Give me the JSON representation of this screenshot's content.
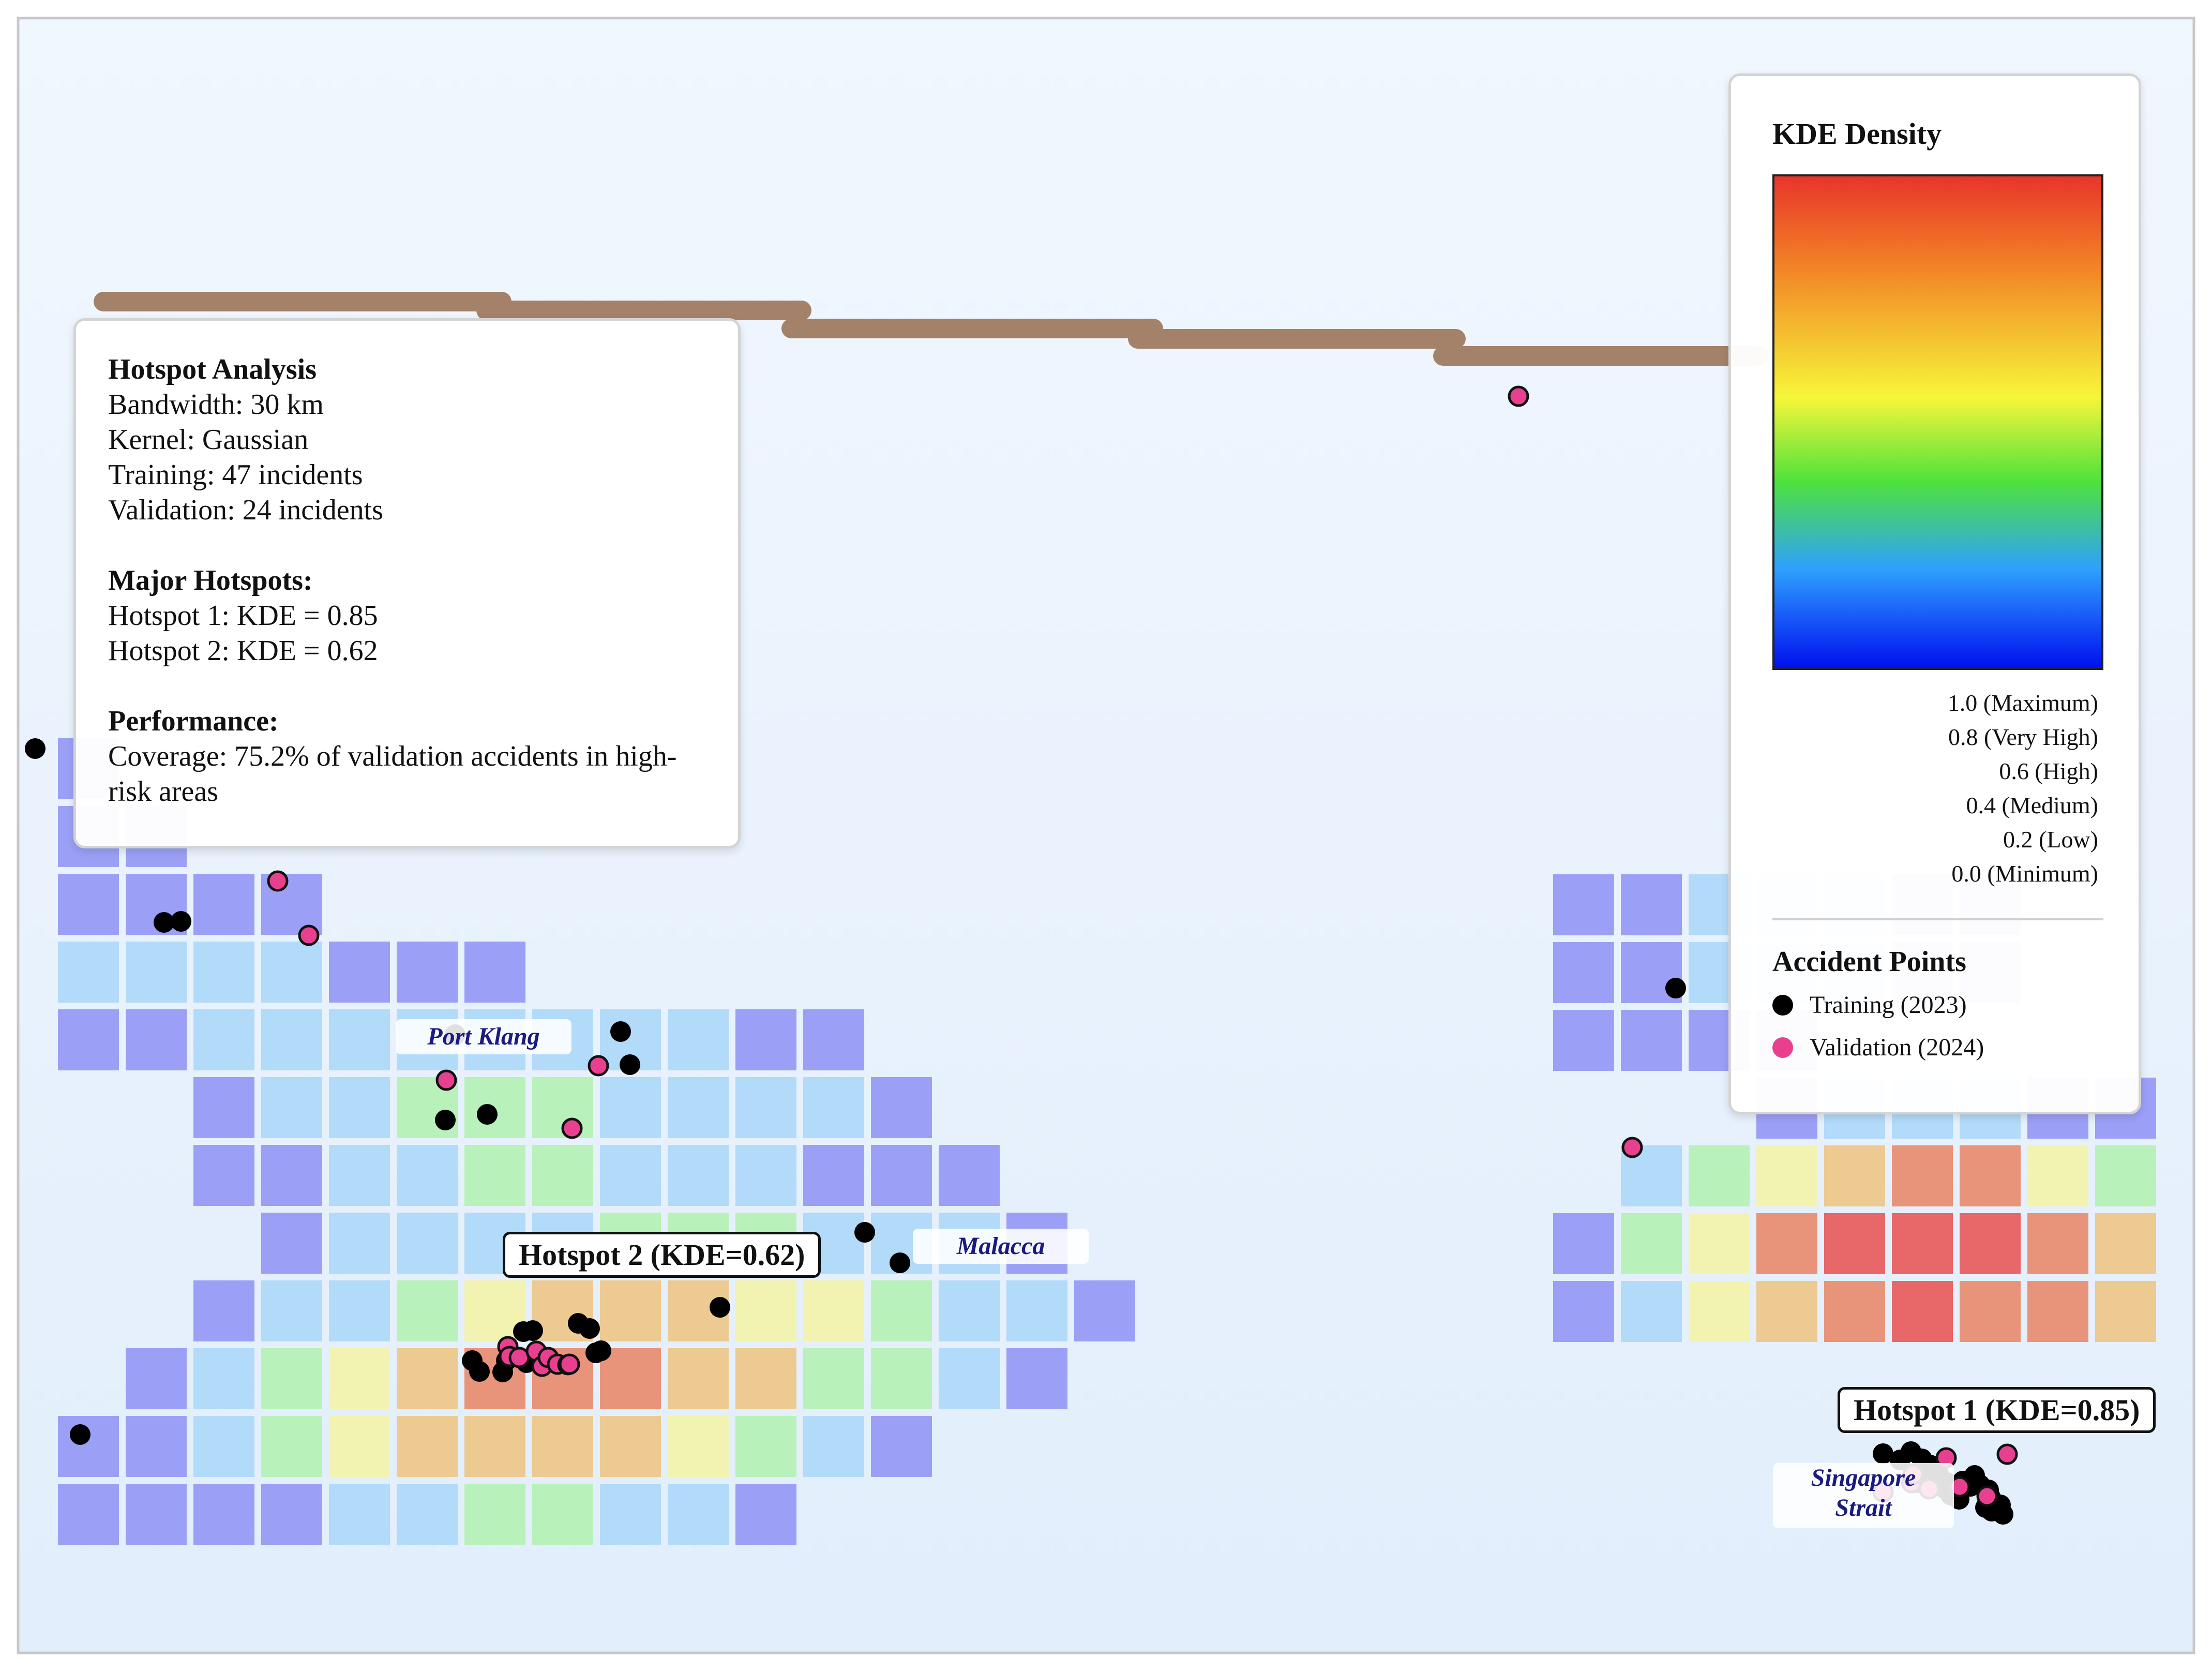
{
  "info_panel": {
    "title": "Hotspot Analysis",
    "bandwidth": "Bandwidth: 30 km",
    "kernel": "Kernel: Gaussian",
    "training": "Training: 47 incidents",
    "validation": "Validation: 24 incidents",
    "hotspots_heading": "Major Hotspots:",
    "hotspot1": "Hotspot 1: KDE = 0.85",
    "hotspot2": "Hotspot 2: KDE = 0.62",
    "performance_heading": "Performance:",
    "coverage_line1": "Coverage: 75.2% of validation accidents in high-",
    "coverage_line2": "risk areas"
  },
  "legend": {
    "title": "KDE Density",
    "gradient_colors": [
      "#e8352a",
      "#f38a26",
      "#f6f63a",
      "#4fe23b",
      "#2ea0ff",
      "#0010ee"
    ],
    "ticks": [
      "1.0 (Maximum)",
      "0.8 (Very High)",
      "0.6 (High)",
      "0.4 (Medium)",
      "0.2 (Low)",
      "0.0 (Minimum)"
    ],
    "points_title": "Accident Points",
    "training_label": "Training (2023)",
    "validation_label": "Validation (2024)",
    "training_color": "#000000",
    "validation_color": "#e8408f"
  },
  "places": {
    "port_klang": "Port Klang",
    "malacca": "Malacca",
    "singapore_strait_1": "Singapore",
    "singapore_strait_2": "Strait"
  },
  "hotspot_labels": {
    "hotspot1": "Hotspot 1 (KDE=0.85)",
    "hotspot2": "Hotspot 2 (KDE=0.62)"
  },
  "map_colors": {
    "background_top": "#f1f7fe",
    "background_bottom": "#e2eefc",
    "road": "#a4826a",
    "density_0": "#9297f5",
    "density_1": "#acd7f8",
    "density_2": "#b2f1b2",
    "density_3": "#f3f3a8",
    "density_4": "#ecc585",
    "density_5": "#e88a6c",
    "density_6": "#e85858"
  },
  "density_grid_levels": {
    "rows": [
      "0.0 . . . . . . . . . . . . . . . .",
      "0.0 0.0 . . . . . . . . . . . . . . .",
      "0.0 0.0 0.0 0.0 . . . . . . . . . . . . .",
      "0.15 0.15 0.15 0.15 0.0 0.0 0.0 . . . . . . . . . .",
      "0.0 0.0 0.15 0.15 0.15 0.15 0.15 0.15 0.15 0.15 0.0 0.0 . . . . .",
      ". . 0.0 0.15 0.15 0.3 0.3 0.3 0.15 0.15 0.15 0.15 0.0 . . . .",
      ". . 0.0 0.0 0.15 0.15 0.3 0.3 0.15 0.15 0.15 0.0 0.0 0.0 . . .",
      ". . . 0.0 0.15 0.15 0.15 0.15 0.3 0.3 0.3 0.15 0.15 0.15 0.0 . .",
      ". . 0.0 0.15 0.15 0.3 0.45 0.6 0.6 0.6 0.45 0.45 0.3 0.15 0.15 0.0 .",
      ". 0.0 0.15 0.3 0.45 0.6 0.75 0.75 0.75 0.6 0.6 0.3 0.3 0.15 0.0 . .",
      "0.0 0.0 0.15 0.3 0.45 0.6 0.6 0.6 0.6 0.45 0.3 0.15 0.0 . . . .",
      "0.0 0.0 0.0 0.0 0.15 0.15 0.3 0.3 0.15 0.15 0.0 . . . . . ."
    ],
    "east_rows": [
      "0.0 0.0 0.15 0.15 0.15 0.0 0.0 . .",
      "0.0 0.0 0.15 0.15 0.15 0.0 0.0 . .",
      "0.0 0.0 0.0 0.0 . . . . .",
      ". . . 0.0 0.15 0.15 0.15 0.0 0.0",
      ". 0.15 0.3 0.45 0.6 0.75 0.75 0.45 0.3",
      "0.0 0.3 0.45 0.75 0.9 0.95 0.9 0.75 0.6",
      "0.0 0.15 0.45 0.6 0.75 0.9 0.75 0.75 0.6"
    ]
  }
}
